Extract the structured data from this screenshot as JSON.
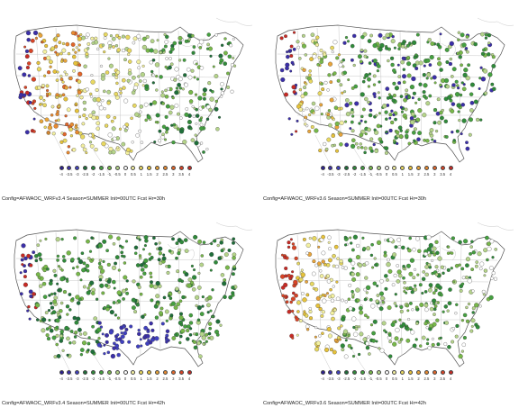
{
  "legend": {
    "labels": [
      "-4",
      "-3.5",
      "-3",
      "-2.5",
      "-2",
      "-1.5",
      "-1",
      "-0.5",
      "0",
      "0.5",
      "1",
      "1.5",
      "2",
      "2.5",
      "3",
      "3.5",
      "4"
    ],
    "colors": [
      "#2b1f8f",
      "#3b2fa8",
      "#4040c0",
      "#1f6f3a",
      "#2f8a3a",
      "#45a040",
      "#78b84a",
      "#b5d48a",
      "#ffffff",
      "#f3f0a0",
      "#e8d860",
      "#e6c23a",
      "#e8a43a",
      "#e88a30",
      "#e2662a",
      "#d84426",
      "#c82a24"
    ]
  },
  "panels": [
    {
      "caption": "Config=AFWAOC_WRFv3.4 Season=SUMMER Init=00UTC Fcst Hr=30h",
      "bias": "warm-west"
    },
    {
      "caption": "Config=AFWAOC_WRFv3.6 Season=SUMMER Init=00UTC Fcst Hr=30h",
      "bias": "green-east"
    },
    {
      "caption": "Config=AFWAOC_WRFv3.4 Season=SUMMER Init=00UTC Fcst Hr=42h",
      "bias": "green-all"
    },
    {
      "caption": "Config=AFWAOC_WRFv3.6 Season=SUMMER Init=00UTC Fcst Hr=42h",
      "bias": "mixed"
    }
  ]
}
